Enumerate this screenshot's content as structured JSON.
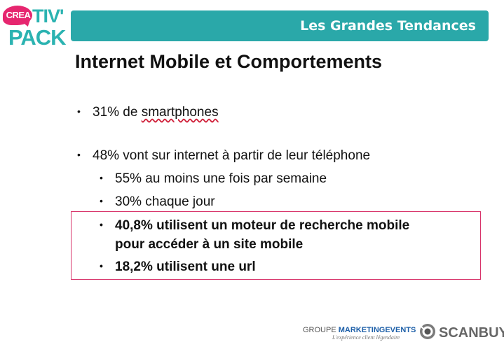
{
  "logo": {
    "crea": "CREA",
    "tiv": "TIV'",
    "pack": "PACK",
    "colors": {
      "pink": "#e6266f",
      "teal": "#2bb3b1"
    }
  },
  "banner": {
    "title": "Les Grandes Tendances",
    "color": "#2aa8a9"
  },
  "slide": {
    "title": "Internet Mobile et Comportements",
    "bullets": [
      {
        "pre": "31% de ",
        "underlined": "smartphones"
      },
      {
        "text": "48% vont sur internet à partir de leur téléphone"
      }
    ],
    "sub_bullets": [
      "55% au moins une fois par semaine",
      "30% chaque jour"
    ],
    "highlighted": {
      "border_color": "#d8336a",
      "line1": "40,8% utilisent un moteur de recherche mobile",
      "line1_cont": "pour accéder à un site mobile",
      "line2": "18,2% utilisent une url"
    },
    "bullet_glyph": "•"
  },
  "footer": {
    "groupe": "GROUPE ",
    "marketing_events": "MARKETINGEVENTS",
    "tagline": "L'expérience client légendaire",
    "scanbuy": "SCANBUY",
    "scanbuy_icon": "scanbuy-eye-icon"
  }
}
